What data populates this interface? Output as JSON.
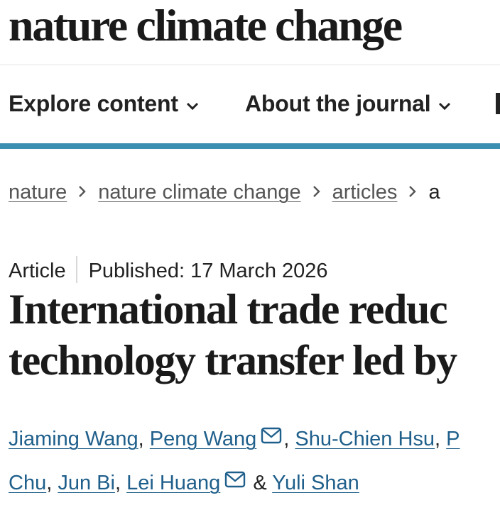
{
  "masthead": {
    "title": "nature climate change"
  },
  "nav": {
    "items": [
      {
        "label": "Explore content",
        "icon": "chevron-down-icon"
      },
      {
        "label": "About the journal",
        "icon": "chevron-down-icon"
      }
    ]
  },
  "breadcrumb": {
    "items": [
      "nature",
      "nature climate change",
      "articles"
    ],
    "current": "a"
  },
  "article": {
    "type": "Article",
    "published": "Published: 17 March 2026",
    "title_lines": [
      "International trade reduc",
      "technology transfer led by"
    ]
  },
  "authors": {
    "line1": [
      "Jiaming Wang",
      "Peng Wang",
      "Shu-Chien Hsu",
      "P"
    ],
    "line2": [
      "Chu",
      "Jun Bi",
      "Lei Huang",
      "Yuli Shan"
    ],
    "separator": ",",
    "conjunction": "&"
  },
  "colors": {
    "accent": "#3b8fb0",
    "link": "#1f5f8b"
  }
}
